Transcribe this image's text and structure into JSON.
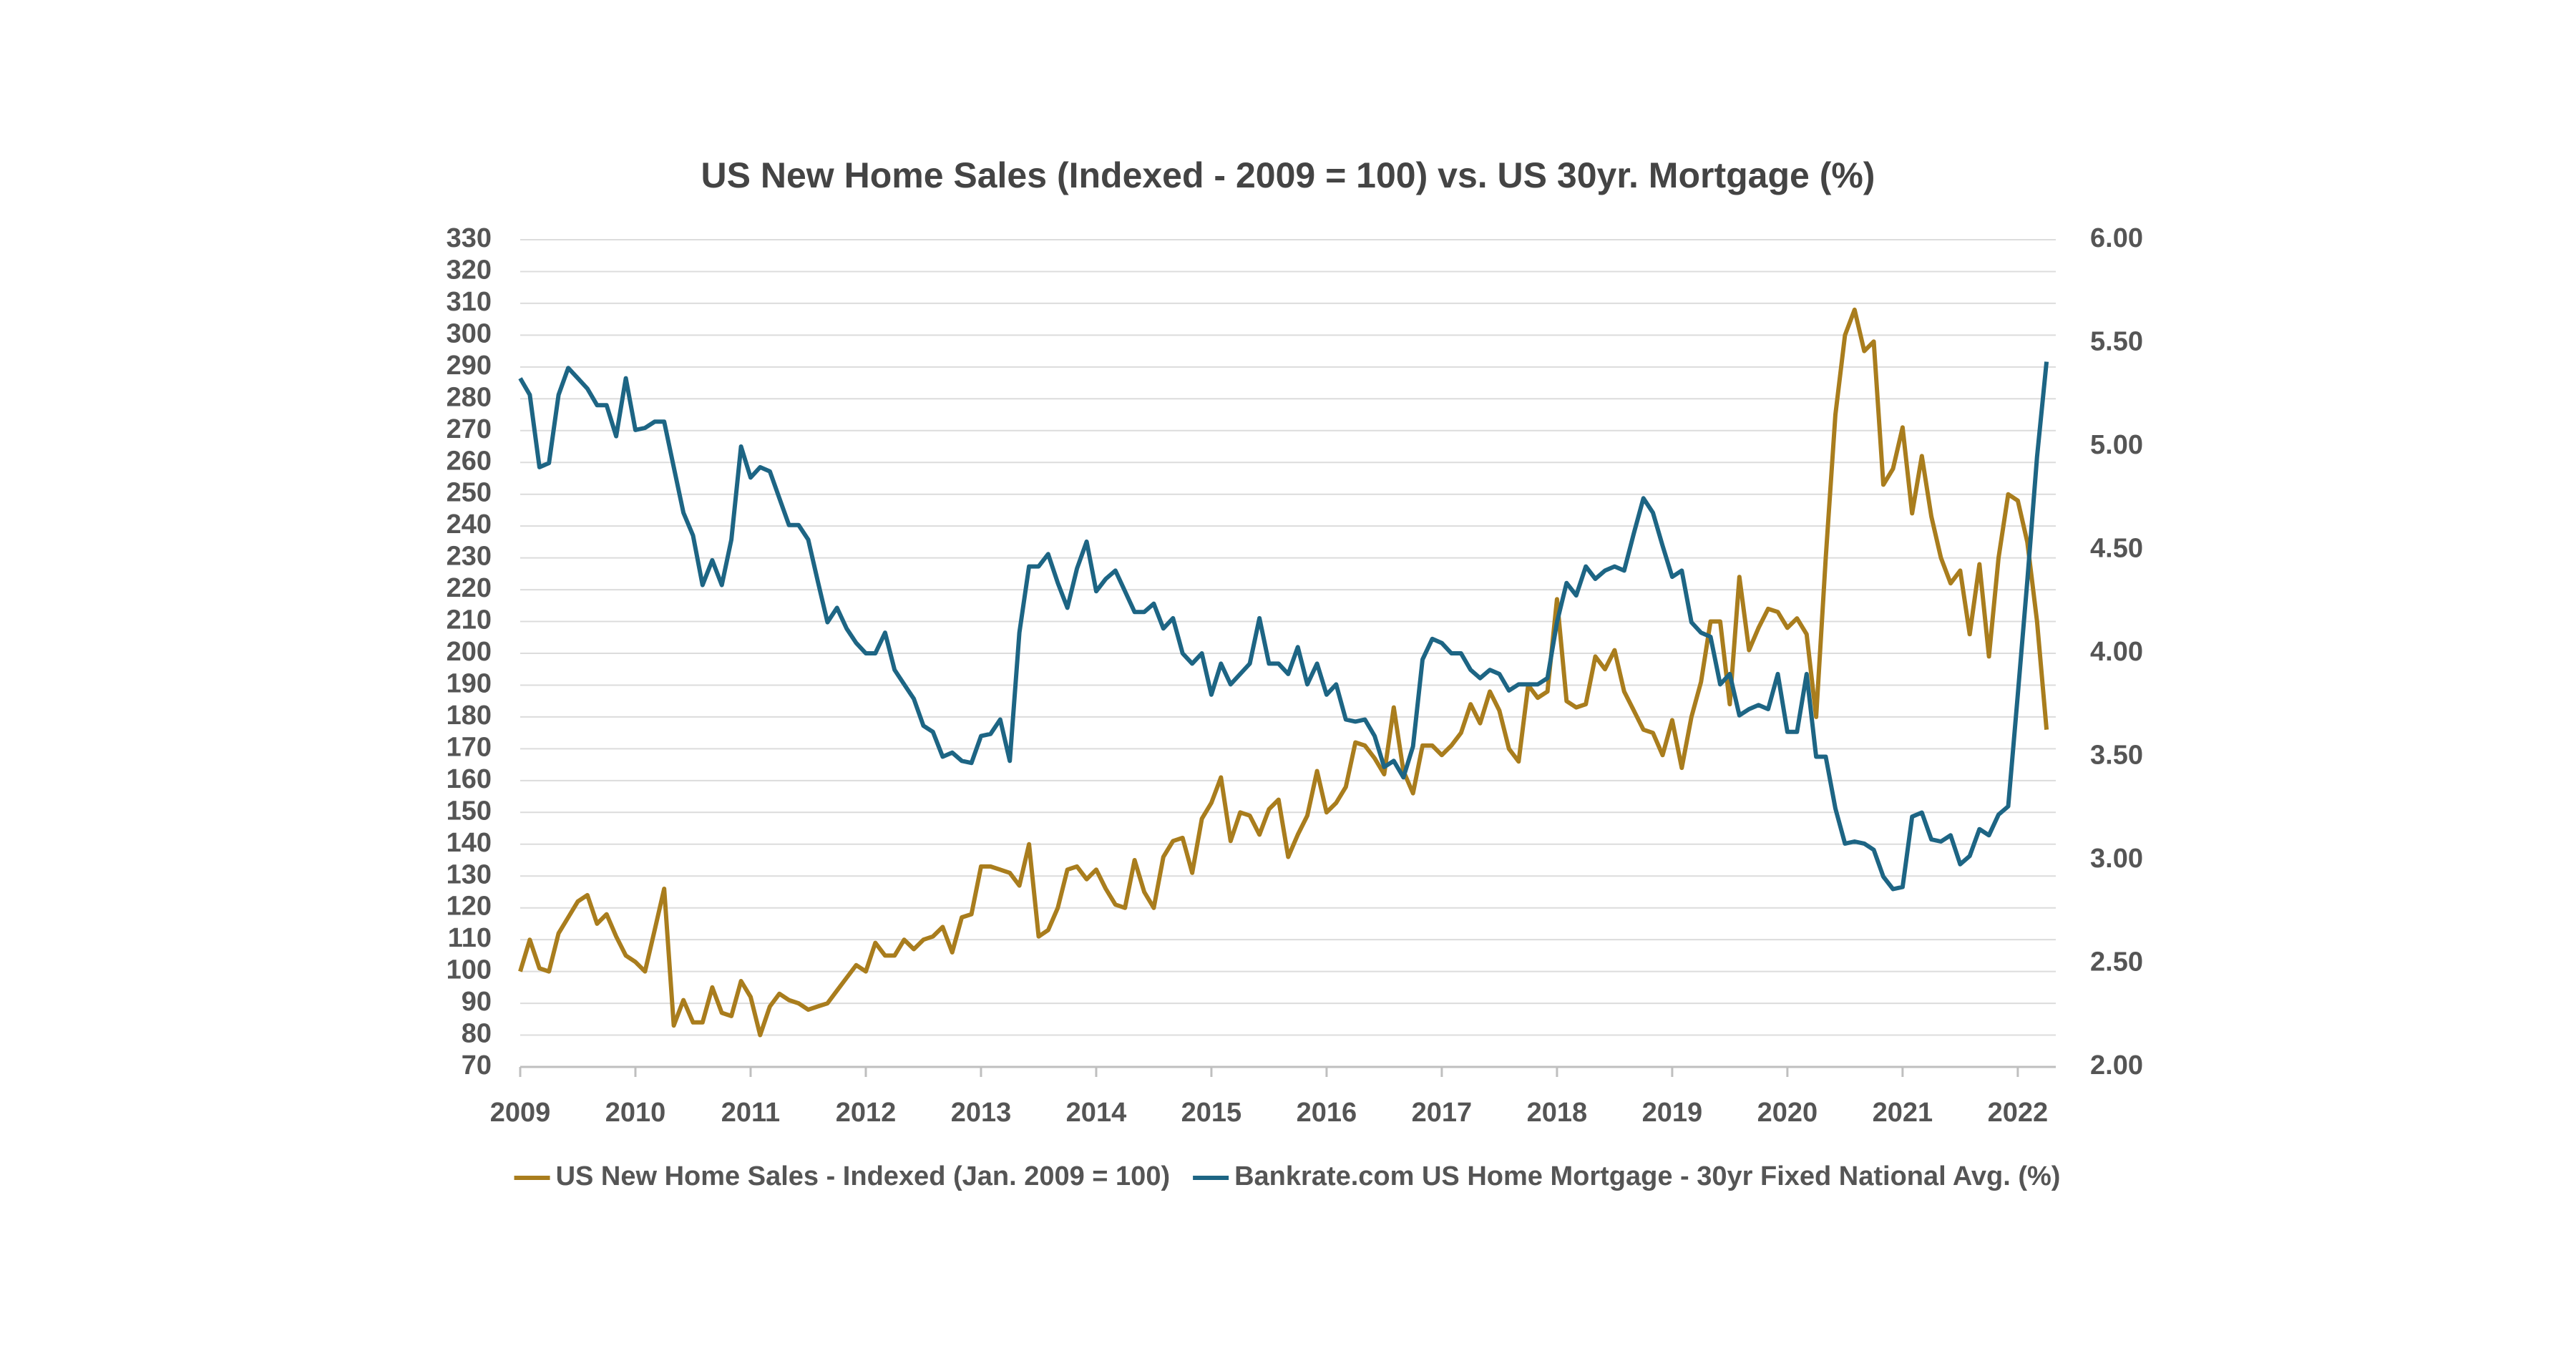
{
  "chart_data": {
    "type": "line",
    "title": "US New Home Sales (Indexed - 2009 = 100) vs. US 30yr. Mortgage (%)",
    "x": [
      2009,
      2009.083,
      2009.167,
      2009.25,
      2009.333,
      2009.417,
      2009.5,
      2009.583,
      2009.667,
      2009.75,
      2009.833,
      2009.917,
      2010,
      2010.083,
      2010.167,
      2010.25,
      2010.333,
      2010.417,
      2010.5,
      2010.583,
      2010.667,
      2010.75,
      2010.833,
      2010.917,
      2011,
      2011.083,
      2011.167,
      2011.25,
      2011.333,
      2011.417,
      2011.5,
      2011.583,
      2011.667,
      2011.75,
      2011.833,
      2011.917,
      2012,
      2012.083,
      2012.167,
      2012.25,
      2012.333,
      2012.417,
      2012.5,
      2012.583,
      2012.667,
      2012.75,
      2012.833,
      2012.917,
      2013,
      2013.083,
      2013.167,
      2013.25,
      2013.333,
      2013.417,
      2013.5,
      2013.583,
      2013.667,
      2013.75,
      2013.833,
      2013.917,
      2014,
      2014.083,
      2014.167,
      2014.25,
      2014.333,
      2014.417,
      2014.5,
      2014.583,
      2014.667,
      2014.75,
      2014.833,
      2014.917,
      2015,
      2015.083,
      2015.167,
      2015.25,
      2015.333,
      2015.417,
      2015.5,
      2015.583,
      2015.667,
      2015.75,
      2015.833,
      2015.917,
      2016,
      2016.083,
      2016.167,
      2016.25,
      2016.333,
      2016.417,
      2016.5,
      2016.583,
      2016.667,
      2016.75,
      2016.833,
      2016.917,
      2017,
      2017.083,
      2017.167,
      2017.25,
      2017.333,
      2017.417,
      2017.5,
      2017.583,
      2017.667,
      2017.75,
      2017.833,
      2017.917,
      2018,
      2018.083,
      2018.167,
      2018.25,
      2018.333,
      2018.417,
      2018.5,
      2018.583,
      2018.667,
      2018.75,
      2018.833,
      2018.917,
      2019,
      2019.083,
      2019.167,
      2019.25,
      2019.333,
      2019.417,
      2019.5,
      2019.583,
      2019.667,
      2019.75,
      2019.833,
      2019.917,
      2020,
      2020.083,
      2020.167,
      2020.25,
      2020.333,
      2020.417,
      2020.5,
      2020.583,
      2020.667,
      2020.75,
      2020.833,
      2020.917,
      2021,
      2021.083,
      2021.167,
      2021.25,
      2021.333,
      2021.417,
      2021.5,
      2021.583,
      2021.667,
      2021.75,
      2021.833,
      2021.917,
      2022,
      2022.083,
      2022.167,
      2022.25
    ],
    "series": [
      {
        "name": "US New Home Sales - Indexed (Jan. 2009 = 100)",
        "color": "#a97d1d",
        "values": [
          100,
          110,
          101,
          100,
          112,
          117,
          122,
          124,
          115,
          118,
          111,
          105,
          103,
          100,
          113,
          126,
          83,
          91,
          84,
          84,
          95,
          87,
          86,
          97,
          92,
          80,
          89,
          93,
          91,
          90,
          88,
          89,
          90,
          94,
          98,
          102,
          100,
          109,
          105,
          105,
          110,
          107,
          110,
          111,
          114,
          106,
          117,
          118,
          133,
          133,
          132,
          131,
          127,
          140,
          111,
          113,
          120,
          132,
          133,
          129,
          132,
          126,
          121,
          120,
          135,
          125,
          120,
          136,
          141,
          142,
          131,
          148,
          153,
          161,
          141,
          150,
          149,
          143,
          151,
          154,
          136,
          143,
          149,
          163,
          150,
          153,
          158,
          172,
          171,
          167,
          162,
          183,
          163,
          156,
          171,
          171,
          168,
          171,
          175,
          184,
          178,
          188,
          182,
          170,
          166,
          190,
          186,
          188,
          217,
          185,
          183,
          184,
          199,
          195,
          201,
          188,
          182,
          176,
          175,
          168,
          179,
          164,
          180,
          191,
          210,
          210,
          184,
          224,
          201,
          208,
          214,
          213,
          208,
          211,
          206,
          180,
          230,
          275,
          300,
          308,
          295,
          298,
          253,
          258,
          271,
          244,
          262,
          243,
          230,
          222,
          226,
          206,
          228,
          199,
          230,
          250,
          248,
          235,
          210,
          176
        ]
      },
      {
        "name": "Bankrate.com US Home Mortgage - 30yr Fixed National Avg. (%)",
        "color": "#1d6584",
        "axis": "y2",
        "values": [
          5.33,
          5.25,
          4.9,
          4.92,
          5.25,
          5.38,
          5.33,
          5.28,
          5.2,
          5.2,
          5.05,
          5.33,
          5.08,
          5.09,
          5.12,
          5.12,
          4.9,
          4.68,
          4.57,
          4.33,
          4.45,
          4.33,
          4.55,
          5.0,
          4.85,
          4.9,
          4.88,
          4.75,
          4.62,
          4.62,
          4.55,
          4.35,
          4.15,
          4.22,
          4.12,
          4.05,
          4.0,
          4.0,
          4.1,
          3.92,
          3.85,
          3.78,
          3.65,
          3.62,
          3.5,
          3.52,
          3.48,
          3.47,
          3.6,
          3.61,
          3.68,
          3.48,
          4.1,
          4.42,
          4.42,
          4.48,
          4.34,
          4.22,
          4.41,
          4.54,
          4.3,
          4.36,
          4.4,
          4.3,
          4.2,
          4.2,
          4.24,
          4.12,
          4.17,
          4.0,
          3.95,
          4.0,
          3.8,
          3.95,
          3.85,
          3.9,
          3.95,
          4.17,
          3.95,
          3.95,
          3.9,
          4.03,
          3.85,
          3.95,
          3.8,
          3.85,
          3.68,
          3.67,
          3.68,
          3.6,
          3.45,
          3.48,
          3.4,
          3.55,
          3.97,
          4.07,
          4.05,
          4.0,
          4.0,
          3.92,
          3.88,
          3.92,
          3.9,
          3.82,
          3.85,
          3.85,
          3.85,
          3.88,
          4.15,
          4.34,
          4.28,
          4.42,
          4.36,
          4.4,
          4.42,
          4.4,
          4.58,
          4.75,
          4.68,
          4.52,
          4.37,
          4.4,
          4.15,
          4.1,
          4.08,
          3.85,
          3.9,
          3.7,
          3.73,
          3.75,
          3.73,
          3.9,
          3.62,
          3.62,
          3.9,
          3.5,
          3.5,
          3.25,
          3.08,
          3.09,
          3.08,
          3.05,
          2.92,
          2.86,
          2.87,
          3.21,
          3.23,
          3.1,
          3.09,
          3.12,
          2.98,
          3.02,
          3.15,
          3.12,
          3.22,
          3.26,
          3.8,
          4.35,
          4.95,
          5.41
        ]
      }
    ],
    "xlim": [
      2009,
      2022.33
    ],
    "xticks": [
      2009,
      2010,
      2011,
      2012,
      2013,
      2014,
      2015,
      2016,
      2017,
      2018,
      2019,
      2020,
      2021,
      2022
    ],
    "ylim": [
      70,
      330
    ],
    "yticks": [
      70,
      80,
      90,
      100,
      110,
      120,
      130,
      140,
      150,
      160,
      170,
      180,
      190,
      200,
      210,
      220,
      230,
      240,
      250,
      260,
      270,
      280,
      290,
      300,
      310,
      320,
      330
    ],
    "y2lim": [
      2,
      6
    ],
    "y2ticks": [
      {
        "value": 2,
        "label": "2.00"
      },
      {
        "value": 2.5,
        "label": "2.50"
      },
      {
        "value": 3,
        "label": "3.00"
      },
      {
        "value": 3.5,
        "label": "3.50"
      },
      {
        "value": 4,
        "label": "4.00"
      },
      {
        "value": 4.5,
        "label": "4.50"
      },
      {
        "value": 5,
        "label": "5.00"
      },
      {
        "value": 5.5,
        "label": "5.50"
      },
      {
        "value": 6,
        "label": "6.00"
      }
    ],
    "grid": true,
    "legend": "bottom"
  }
}
